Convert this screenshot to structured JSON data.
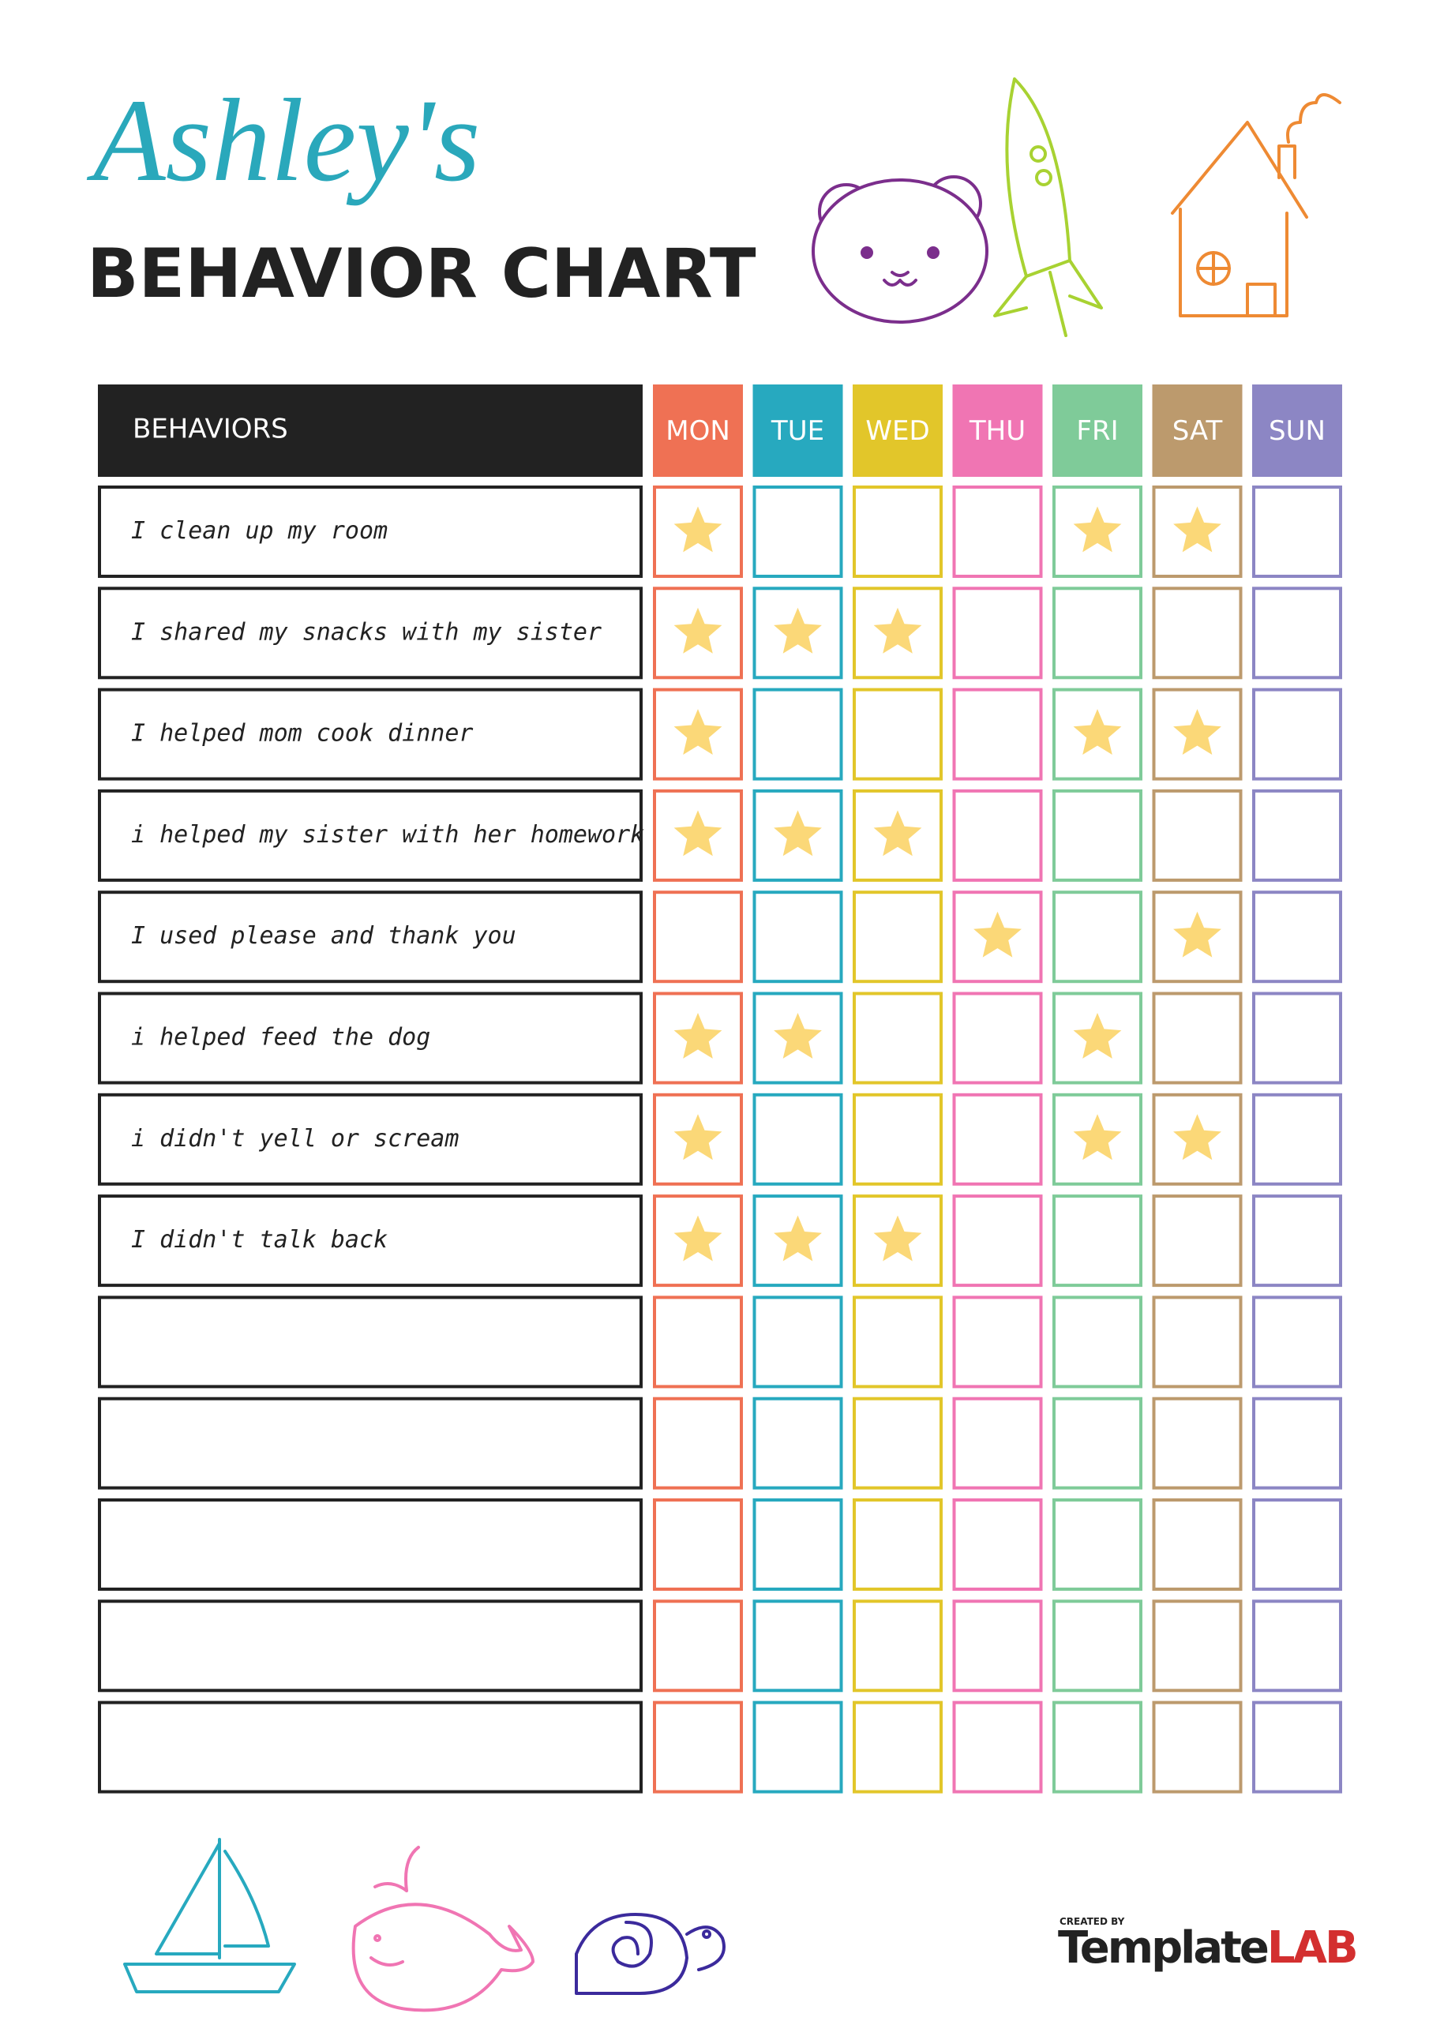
{
  "header": {
    "name": "Ashley's",
    "title": "BEHAVIOR CHART"
  },
  "table": {
    "header": "BEHAVIORS",
    "days": [
      {
        "label": "MON",
        "color": "#ef7154"
      },
      {
        "label": "TUE",
        "color": "#27a9bf"
      },
      {
        "label": "WED",
        "color": "#e2c62a"
      },
      {
        "label": "THU",
        "color": "#f075b3"
      },
      {
        "label": "FRI",
        "color": "#7fcb99"
      },
      {
        "label": "SAT",
        "color": "#bc9a6d"
      },
      {
        "label": "SUN",
        "color": "#8c86c4"
      }
    ],
    "star_color": "#fbd878",
    "rows": [
      {
        "text": "I clean up my room",
        "stars": [
          true,
          false,
          false,
          false,
          true,
          true,
          false
        ]
      },
      {
        "text": "I shared my snacks with my sister",
        "stars": [
          true,
          true,
          true,
          false,
          false,
          false,
          false
        ]
      },
      {
        "text": "I helped mom cook dinner",
        "stars": [
          true,
          false,
          false,
          false,
          true,
          true,
          false
        ]
      },
      {
        "text": "i helped my sister with her homework",
        "stars": [
          true,
          true,
          true,
          false,
          false,
          false,
          false
        ]
      },
      {
        "text": "I used please and thank you",
        "stars": [
          false,
          false,
          false,
          true,
          false,
          true,
          false
        ]
      },
      {
        "text": "i helped feed the dog",
        "stars": [
          true,
          true,
          false,
          false,
          true,
          false,
          false
        ]
      },
      {
        "text": "i didn't yell or scream",
        "stars": [
          true,
          false,
          false,
          false,
          true,
          true,
          false
        ]
      },
      {
        "text": "I didn't talk back",
        "stars": [
          true,
          true,
          true,
          false,
          false,
          false,
          false
        ]
      },
      {
        "text": null,
        "stars": [
          false,
          false,
          false,
          false,
          false,
          false,
          false
        ]
      },
      {
        "text": null,
        "stars": [
          false,
          false,
          false,
          false,
          false,
          false,
          false
        ]
      },
      {
        "text": null,
        "stars": [
          false,
          false,
          false,
          false,
          false,
          false,
          false
        ]
      },
      {
        "text": null,
        "stars": [
          false,
          false,
          false,
          false,
          false,
          false,
          false
        ]
      },
      {
        "text": null,
        "stars": [
          false,
          false,
          false,
          false,
          false,
          false,
          false
        ]
      }
    ]
  },
  "footer": {
    "created_by": "CREATED BY",
    "brand": [
      "Template",
      "LAB"
    ]
  }
}
